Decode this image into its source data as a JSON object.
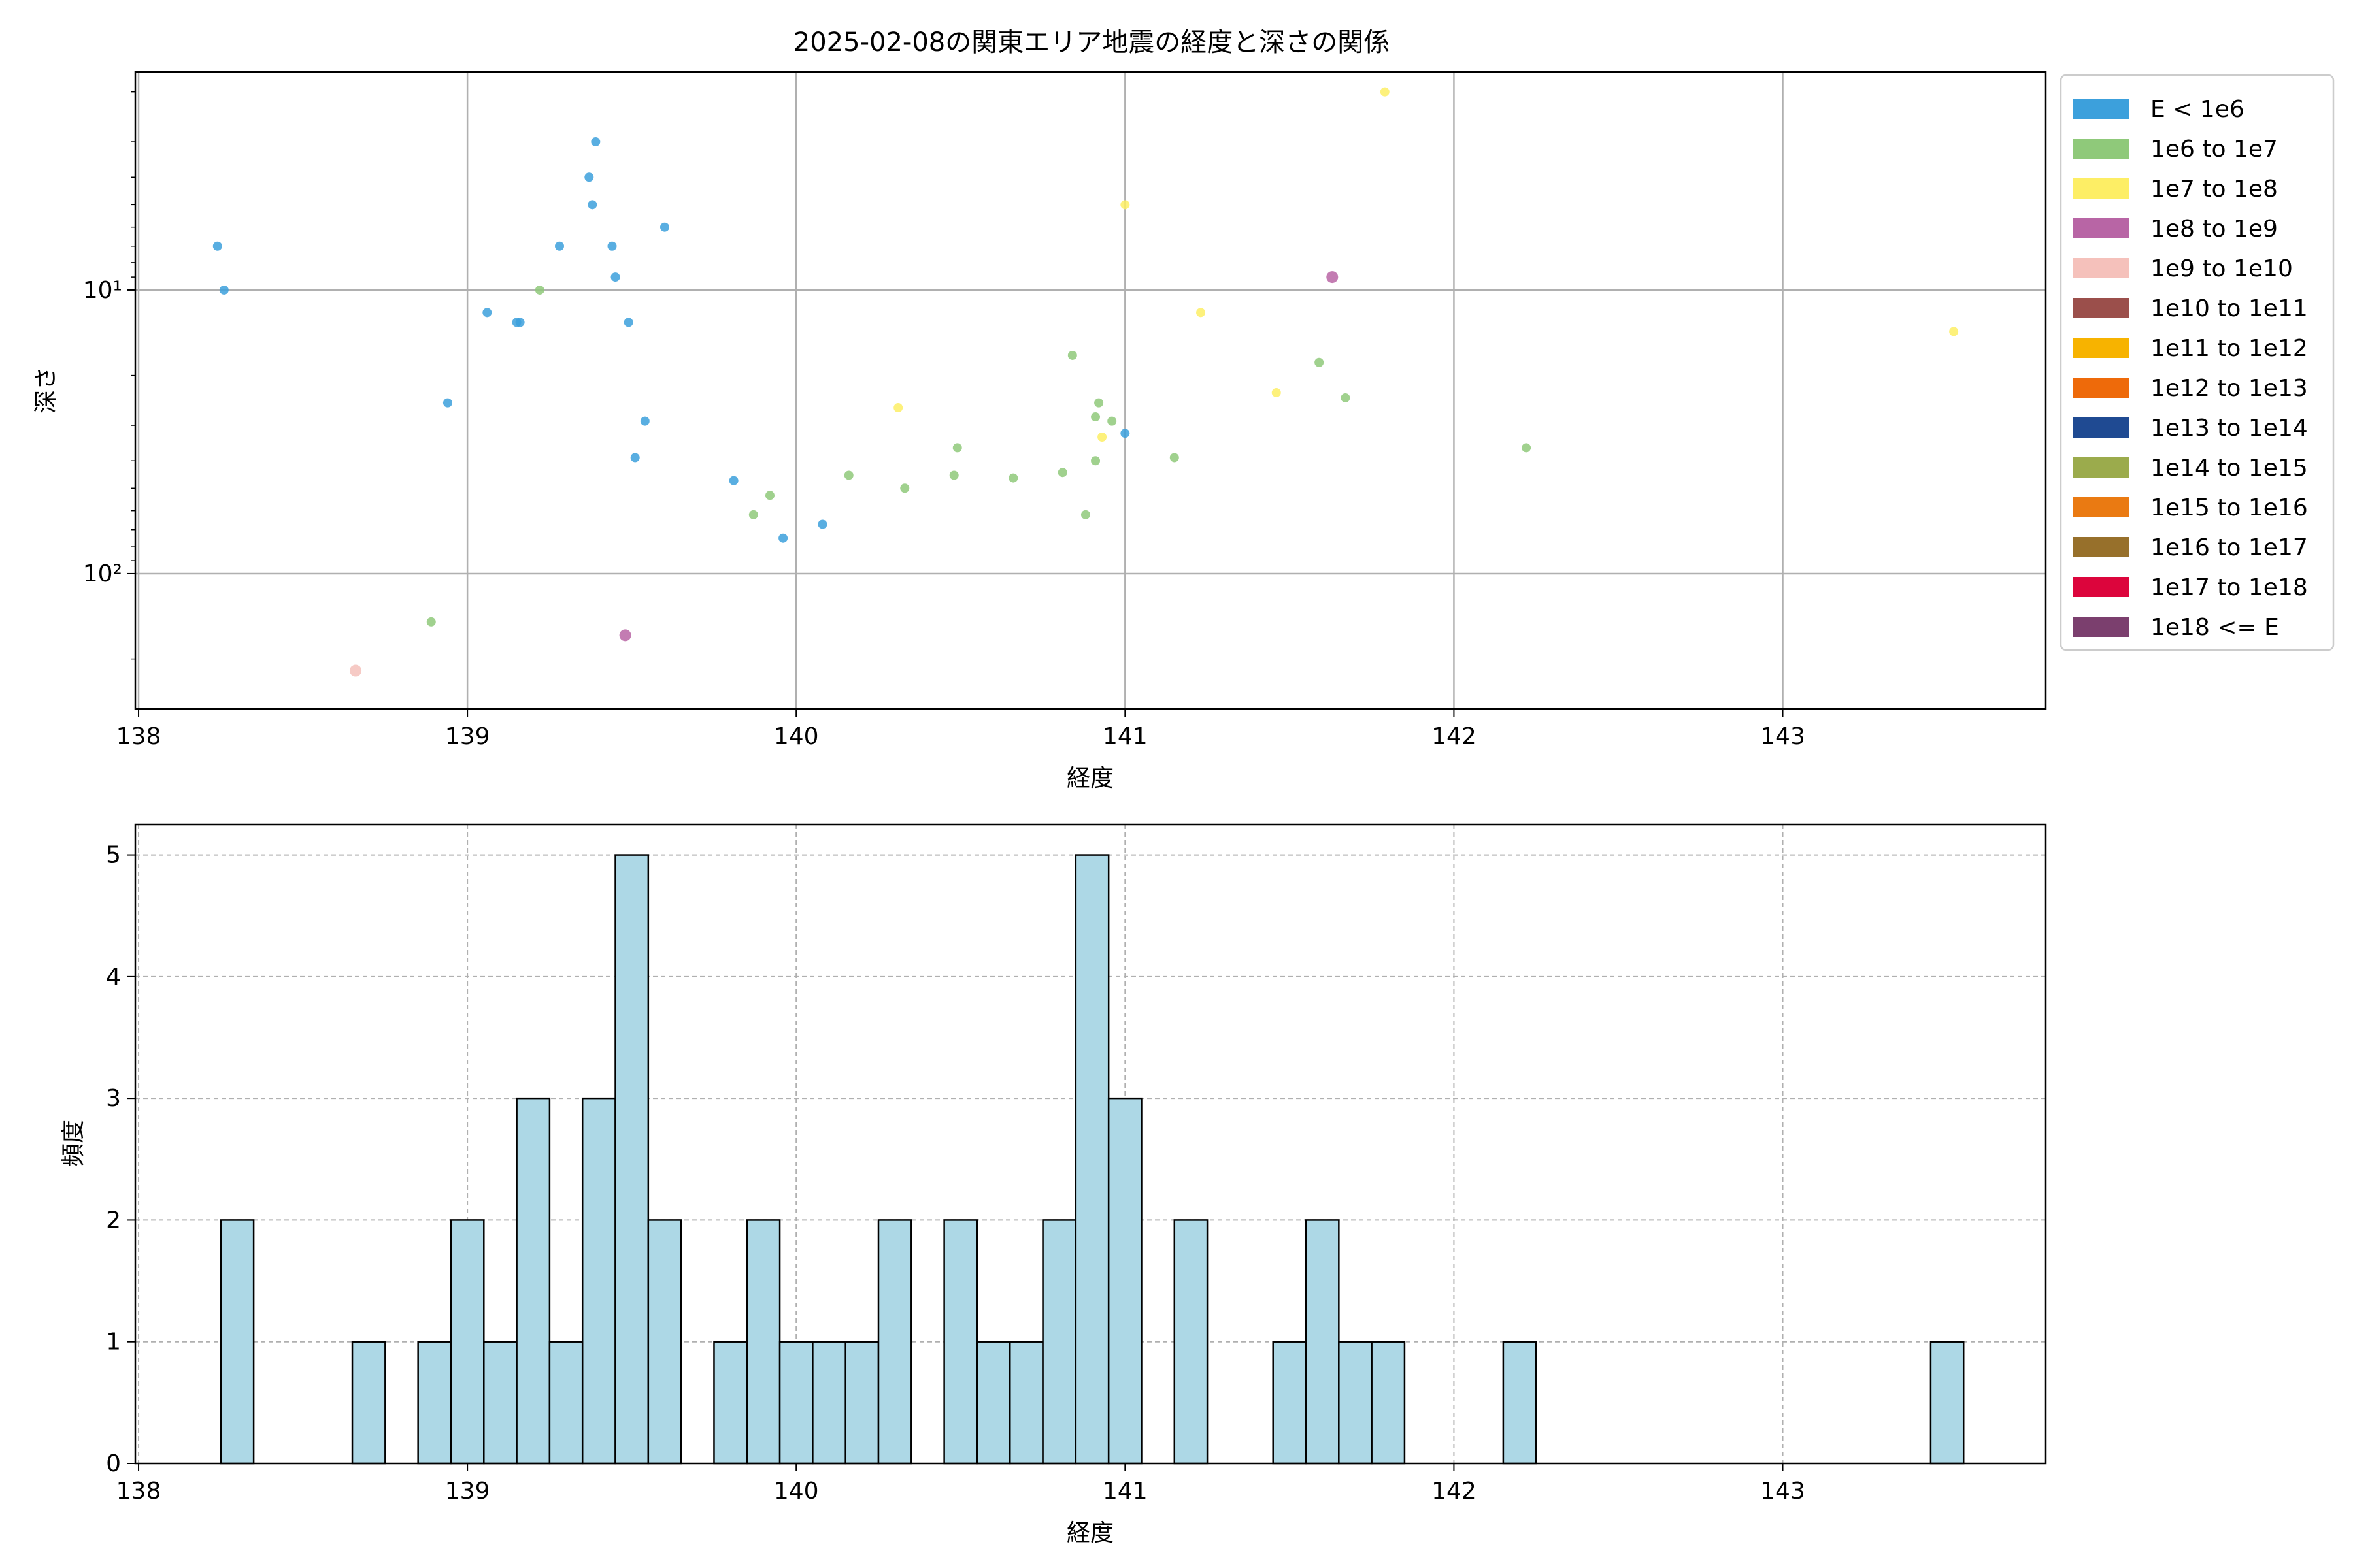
{
  "chart_data": [
    {
      "type": "scatter",
      "title": "2025-02-08の関東エリア地震の経度と深さの関係",
      "xlabel": "経度",
      "ylabel": "深さ",
      "xlim": [
        137.99,
        143.8
      ],
      "xticks": [
        138,
        139,
        140,
        141,
        142,
        143
      ],
      "yscale": "log",
      "yinverted": true,
      "ylim": [
        300,
        1.7
      ],
      "yticks": [
        {
          "value": 10,
          "label": "10¹"
        },
        {
          "value": 100,
          "label": "10²"
        }
      ],
      "grid": true,
      "legend_position": "outside-right",
      "legend": [
        {
          "label": "E < 1e6",
          "color": "#3ca0dc"
        },
        {
          "label": "1e6 to 1e7",
          "color": "#8fc97a"
        },
        {
          "label": "1e7 to 1e8",
          "color": "#fdee65"
        },
        {
          "label": "1e8 to 1e9",
          "color": "#b865a5"
        },
        {
          "label": "1e9 to 1e10",
          "color": "#f5c1bb"
        },
        {
          "label": "1e10 to 1e11",
          "color": "#9b4f4b"
        },
        {
          "label": "1e11 to 1e12",
          "color": "#f7b300"
        },
        {
          "label": "1e12 to 1e13",
          "color": "#ee6a0a"
        },
        {
          "label": "1e13 to 1e14",
          "color": "#1f4a92"
        },
        {
          "label": "1e14 to 1e15",
          "color": "#9bab4c"
        },
        {
          "label": "1e15 to 1e16",
          "color": "#ea7a12"
        },
        {
          "label": "1e16 to 1e17",
          "color": "#97702b"
        },
        {
          "label": "1e17 to 1e18",
          "color": "#dc053c"
        },
        {
          "label": "1e18 <= E",
          "color": "#7b3f6e"
        }
      ],
      "series": [
        {
          "class": 0,
          "points": [
            [
              138.24,
              7
            ],
            [
              138.26,
              10
            ],
            [
              138.94,
              25
            ],
            [
              139.06,
              12
            ],
            [
              139.15,
              13
            ],
            [
              139.16,
              13
            ],
            [
              139.28,
              7
            ],
            [
              139.37,
              4
            ],
            [
              139.38,
              5
            ],
            [
              139.39,
              3
            ],
            [
              139.44,
              7
            ],
            [
              139.45,
              9
            ],
            [
              139.49,
              13
            ],
            [
              139.51,
              39
            ],
            [
              139.54,
              29
            ],
            [
              139.6,
              6
            ],
            [
              139.81,
              47
            ],
            [
              139.96,
              75
            ],
            [
              140.08,
              67
            ],
            [
              141.0,
              32
            ]
          ]
        },
        {
          "class": 1,
          "points": [
            [
              138.89,
              148
            ],
            [
              139.22,
              10
            ],
            [
              139.87,
              62
            ],
            [
              139.92,
              53
            ],
            [
              140.16,
              45
            ],
            [
              140.33,
              50
            ],
            [
              140.48,
              45
            ],
            [
              140.49,
              36
            ],
            [
              140.66,
              46
            ],
            [
              140.81,
              44
            ],
            [
              140.84,
              17
            ],
            [
              140.88,
              62
            ],
            [
              140.91,
              40
            ],
            [
              140.91,
              28
            ],
            [
              140.92,
              25
            ],
            [
              140.96,
              29
            ],
            [
              141.15,
              39
            ],
            [
              141.59,
              18
            ],
            [
              141.67,
              24
            ],
            [
              142.22,
              36
            ]
          ]
        },
        {
          "class": 2,
          "points": [
            [
              140.31,
              26
            ],
            [
              140.93,
              33
            ],
            [
              141.0,
              5
            ],
            [
              141.23,
              12
            ],
            [
              141.46,
              23
            ],
            [
              141.79,
              2
            ],
            [
              143.52,
              14
            ]
          ]
        },
        {
          "class": 3,
          "points": [
            [
              139.48,
              165
            ],
            [
              141.63,
              9
            ]
          ]
        },
        {
          "class": 4,
          "points": [
            [
              138.66,
              220
            ]
          ]
        }
      ]
    },
    {
      "type": "bar",
      "subtype": "histogram",
      "title": "",
      "xlabel": "経度",
      "ylabel": "頻度",
      "xlim": [
        137.99,
        143.8
      ],
      "xticks": [
        138,
        139,
        140,
        141,
        142,
        143
      ],
      "ylim": [
        0,
        5.25
      ],
      "yticks": [
        0,
        1,
        2,
        3,
        4,
        5
      ],
      "grid": true,
      "bar_color": "#add8e6",
      "bin_width": 0.1,
      "bins": [
        {
          "start": 138.25,
          "count": 2
        },
        {
          "start": 138.65,
          "count": 1
        },
        {
          "start": 138.85,
          "count": 1
        },
        {
          "start": 138.95,
          "count": 2
        },
        {
          "start": 139.05,
          "count": 1
        },
        {
          "start": 139.15,
          "count": 3
        },
        {
          "start": 139.25,
          "count": 1
        },
        {
          "start": 139.35,
          "count": 3
        },
        {
          "start": 139.45,
          "count": 5
        },
        {
          "start": 139.55,
          "count": 2
        },
        {
          "start": 139.75,
          "count": 1
        },
        {
          "start": 139.85,
          "count": 2
        },
        {
          "start": 139.95,
          "count": 1
        },
        {
          "start": 140.05,
          "count": 1
        },
        {
          "start": 140.15,
          "count": 1
        },
        {
          "start": 140.25,
          "count": 2
        },
        {
          "start": 140.45,
          "count": 2
        },
        {
          "start": 140.55,
          "count": 1
        },
        {
          "start": 140.65,
          "count": 1
        },
        {
          "start": 140.75,
          "count": 2
        },
        {
          "start": 140.85,
          "count": 5
        },
        {
          "start": 140.95,
          "count": 3
        },
        {
          "start": 141.15,
          "count": 2
        },
        {
          "start": 141.45,
          "count": 1
        },
        {
          "start": 141.55,
          "count": 2
        },
        {
          "start": 141.65,
          "count": 1
        },
        {
          "start": 141.75,
          "count": 1
        },
        {
          "start": 142.15,
          "count": 1
        },
        {
          "start": 143.45,
          "count": 1
        }
      ]
    }
  ]
}
